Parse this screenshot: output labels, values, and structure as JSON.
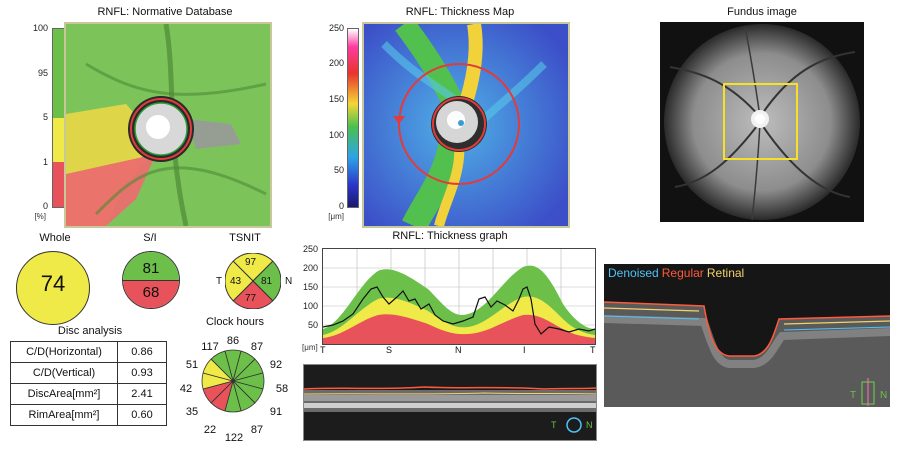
{
  "titles": {
    "normative": "RNFL: Normative Database",
    "thickness_map": "RNFL: Thickness Map",
    "fundus": "Fundus image",
    "thickness_graph": "RNFL: Thickness graph",
    "disc_analysis": "Disc analysis",
    "clock_hours": "Clock hours"
  },
  "normative_scale": {
    "ticks": [
      "100",
      "95",
      "5",
      "1",
      "0"
    ],
    "unit": "[%]"
  },
  "thickness_scale": {
    "ticks": [
      "250",
      "200",
      "150",
      "100",
      "50",
      "0"
    ],
    "unit": "[μm]"
  },
  "summary": {
    "whole_label": "Whole",
    "whole_value": "74",
    "si_label": "S/I",
    "s_value": "81",
    "i_value": "68",
    "tsnit_label": "TSNIT",
    "tsnit": {
      "s": "97",
      "t": "43",
      "n": "81",
      "i": "77",
      "t_side": "T",
      "n_side": "N"
    }
  },
  "disc_analysis": [
    {
      "label": "C/D(Horizontal)",
      "value": "0.86"
    },
    {
      "label": "C/D(Vertical)",
      "value": "0.93"
    },
    {
      "label": "DiscArea[mm²]",
      "value": "2.41"
    },
    {
      "label": "RimArea[mm²]",
      "value": "0.60"
    }
  ],
  "clock_hours": [
    "86",
    "87",
    "92",
    "58",
    "91",
    "87",
    "122",
    "22",
    "35",
    "42",
    "51",
    "117"
  ],
  "graph": {
    "y_ticks": [
      "250",
      "200",
      "150",
      "100",
      "50"
    ],
    "y_unit": "[μm]",
    "x_labels": [
      "T",
      "S",
      "N",
      "I",
      "T"
    ]
  },
  "bscan_left": {
    "t": "T",
    "n": "N"
  },
  "bscan_right": {
    "legend": [
      "Denoised",
      "Regular",
      "Retinal"
    ],
    "t": "T",
    "n": "N"
  },
  "colors": {
    "green": "#6cc04a",
    "yellow": "#f0ea48",
    "red": "#e8525a",
    "denoised": "#4fc3f7",
    "regular": "#ff5a3c",
    "retinal": "#f2d36b"
  }
}
